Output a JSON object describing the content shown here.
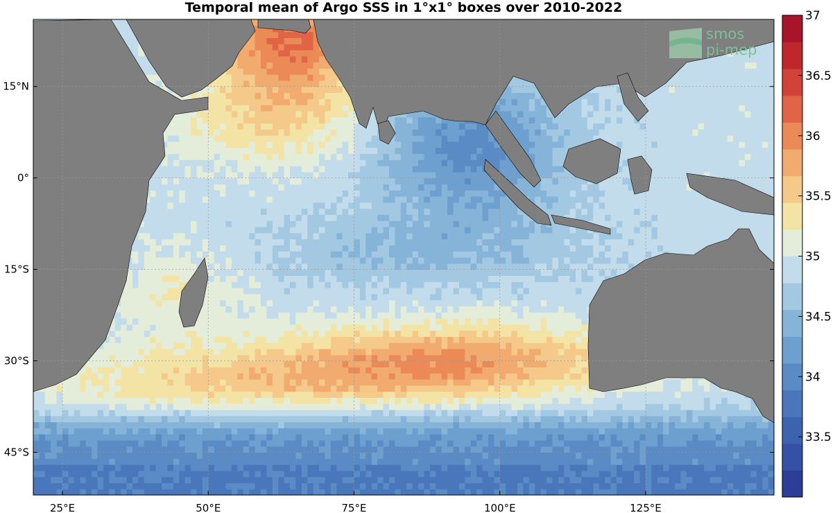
{
  "title": "Temporal mean of Argo SSS in 1°x1° boxes over 2010-2022",
  "logo": {
    "line1": "smos",
    "line2": "pi-mep",
    "color": "#7fbf9a"
  },
  "map": {
    "lon_range": [
      20,
      147
    ],
    "lat_range": [
      -52,
      26
    ],
    "land_color": "#7f7f7f",
    "ocean_nodata_color": "#ffffff",
    "grid": true
  },
  "axes": {
    "lon_ticks": [
      {
        "value": 25,
        "label": "25°E"
      },
      {
        "value": 50,
        "label": "50°E"
      },
      {
        "value": 75,
        "label": "75°E"
      },
      {
        "value": 100,
        "label": "100°E"
      },
      {
        "value": 125,
        "label": "125°E"
      }
    ],
    "lat_ticks": [
      {
        "value": 15,
        "label": "15°N"
      },
      {
        "value": 0,
        "label": "0°"
      },
      {
        "value": -15,
        "label": "15°S"
      },
      {
        "value": -30,
        "label": "30°S"
      },
      {
        "value": -45,
        "label": "45°S"
      }
    ]
  },
  "colorbar": {
    "min": 33.0,
    "max": 37.0,
    "ticks": [
      {
        "value": 33.5,
        "label": "33.5"
      },
      {
        "value": 34,
        "label": "34"
      },
      {
        "value": 34.5,
        "label": "34.5"
      },
      {
        "value": 35,
        "label": "35"
      },
      {
        "value": 35.5,
        "label": "35.5"
      },
      {
        "value": 36,
        "label": "36"
      },
      {
        "value": 36.5,
        "label": "36.5"
      },
      {
        "value": 37,
        "label": "37"
      }
    ],
    "colors": [
      "#2b3d97",
      "#3451a5",
      "#3d63b0",
      "#4a77bb",
      "#5a8bc5",
      "#6d9fcf",
      "#86b4d9",
      "#a3c8e2",
      "#c2dceb",
      "#e3edd9",
      "#f3e4a6",
      "#f5c98a",
      "#f2ab6e",
      "#ec8a57",
      "#e06546",
      "#d14338",
      "#c0272d",
      "#a8142a"
    ]
  }
}
